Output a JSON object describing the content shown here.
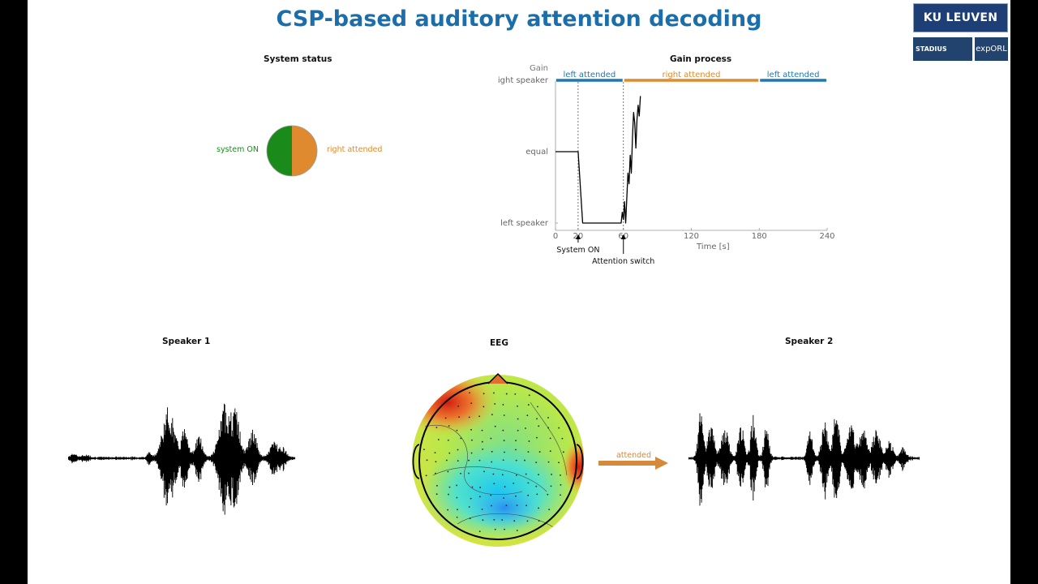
{
  "title": "CSP-based auditory attention decoding",
  "logos": {
    "ku": "KU LEUVEN",
    "stadius": "STADIUS",
    "exporl": "expORL"
  },
  "system_status": {
    "heading": "System status",
    "left_label": "system ON",
    "right_label": "right attended",
    "left_color": "#1a8a1a",
    "right_color": "#e08a30"
  },
  "gain_process": {
    "heading": "Gain process",
    "y_axis_title": "Gain",
    "y_ticks": [
      "right speaker",
      "equal",
      "left speaker"
    ],
    "x_label": "Time [s]",
    "x_ticks": [
      "0",
      "20",
      "60",
      "120",
      "180",
      "240"
    ],
    "segments": [
      {
        "label": "left attended",
        "start": 0,
        "end": 60,
        "color": "#1f77b4"
      },
      {
        "label": "right attended",
        "start": 60,
        "end": 180,
        "color": "#e08a30"
      },
      {
        "label": "left attended",
        "start": 180,
        "end": 240,
        "color": "#1f77b4"
      }
    ],
    "annotations": [
      {
        "label": "System ON",
        "time": 20
      },
      {
        "label": "Attention switch",
        "time": 60
      }
    ]
  },
  "chart_data": {
    "type": "line",
    "title": "Gain process",
    "xlabel": "Time [s]",
    "ylabel": "Gain",
    "xlim": [
      0,
      240
    ],
    "ylim": [
      -1,
      1
    ],
    "y_tick_labels": [
      "left speaker",
      "equal",
      "right speaker"
    ],
    "series": [
      {
        "x": [
          0,
          20,
          22,
          24,
          58,
          59,
          60,
          61,
          62,
          63,
          64,
          65,
          66,
          67,
          68,
          69,
          70,
          71,
          72,
          73,
          74,
          75
        ],
        "y": [
          0.0,
          0.0,
          -0.5,
          -1.0,
          -1.0,
          -0.85,
          -0.95,
          -0.7,
          -1.0,
          -0.65,
          -0.3,
          -0.45,
          -0.05,
          -0.3,
          0.2,
          0.55,
          0.4,
          0.05,
          0.45,
          0.65,
          0.5,
          0.78
        ]
      }
    ]
  },
  "speaker1": {
    "heading": "Speaker 1"
  },
  "eeg": {
    "heading": "EEG"
  },
  "speaker2": {
    "heading": "Speaker 2"
  },
  "arrow_label": "attended",
  "arrow_color": "#d48a3a"
}
